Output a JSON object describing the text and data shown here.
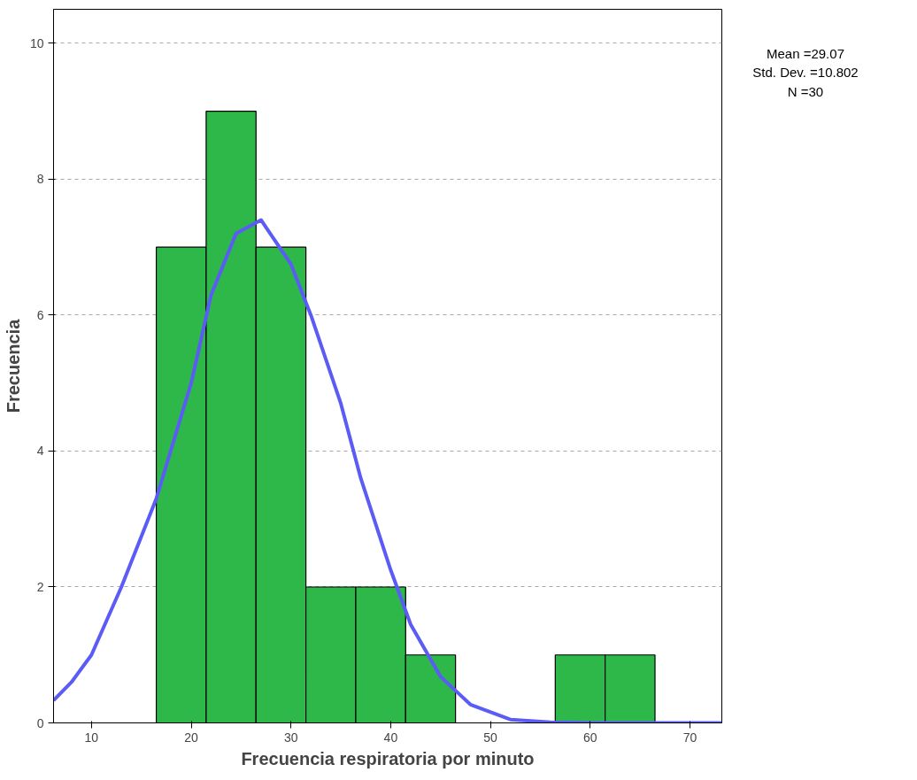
{
  "chart_data": {
    "type": "histogram",
    "xlabel": "Frecuencia respiratoria por minuto",
    "ylabel": "Frecuencia",
    "bins": [
      16.5,
      21.5,
      26.5,
      31.5,
      36.5,
      41.5,
      46.5,
      51.5,
      56.5,
      61.5,
      66.5
    ],
    "values": [
      7,
      9,
      7,
      2,
      2,
      1,
      0,
      0,
      1,
      1
    ],
    "color": "#2eb84a",
    "series": [
      {
        "type": "line",
        "color": "#5b5bf5",
        "x": [
          6.2,
          8,
          10,
          13,
          16.5,
          20,
          22,
          24.5,
          27,
          30,
          32,
          35,
          37,
          40,
          42,
          45,
          48,
          52,
          56,
          60,
          66,
          73.2
        ],
        "values": [
          0.33,
          0.6,
          1.0,
          2.0,
          3.3,
          5.0,
          6.3,
          7.2,
          7.4,
          6.75,
          6.0,
          4.7,
          3.6,
          2.25,
          1.45,
          0.68,
          0.27,
          0.05,
          0.01,
          0,
          0,
          0
        ]
      }
    ],
    "xlim": [
      6.2,
      73.2
    ],
    "xticks": [
      10,
      20,
      30,
      40,
      50,
      60,
      70
    ],
    "ylim": [
      0,
      10.5
    ],
    "yticks": [
      0,
      2,
      4,
      6,
      8,
      10
    ],
    "grid": "y",
    "annotations": [
      "Mean =29.07",
      "Std. Dev. =10.802",
      "N =30"
    ]
  }
}
